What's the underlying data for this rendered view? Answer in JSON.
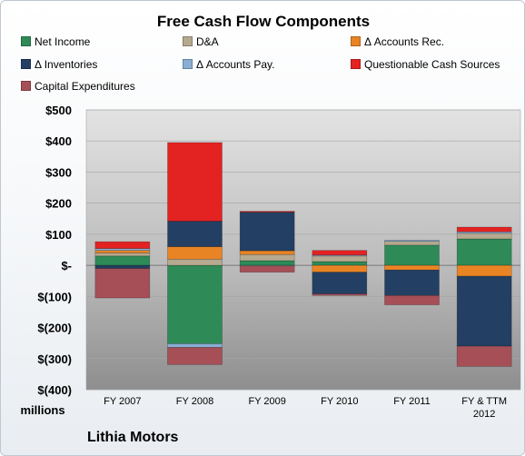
{
  "chart_data": {
    "type": "bar",
    "stacked": true,
    "title": "Free Cash Flow Components",
    "ylabel": "millions",
    "ylim": [
      -400,
      500
    ],
    "yticks": [
      500,
      400,
      300,
      200,
      100,
      0,
      -100,
      -200,
      -300,
      -400
    ],
    "ytick_labels": [
      "$500",
      "$400",
      "$300",
      "$200",
      "$100",
      "$-",
      "$(100)",
      "$(200)",
      "$(300)",
      "$(400)"
    ],
    "categories": [
      "FY 2007",
      "FY 2008",
      "FY 2009",
      "FY 2010",
      "FY 2011",
      "FY & TTM 2012"
    ],
    "grid": true,
    "legend_position": "top",
    "series": [
      {
        "name": "Net Income",
        "color": "#2e8b57",
        "values": [
          30,
          -252,
          15,
          12,
          65,
          85
        ]
      },
      {
        "name": "D&A",
        "color": "#b5a98f",
        "values": [
          10,
          20,
          20,
          18,
          12,
          18
        ]
      },
      {
        "name": "Δ Accounts Rec.",
        "color": "#e98424",
        "values": [
          8,
          40,
          12,
          -22,
          -15,
          -35
        ]
      },
      {
        "name": "Δ Inventories",
        "color": "#233f63",
        "values": [
          -10,
          82,
          124,
          -70,
          -82,
          -225
        ]
      },
      {
        "name": "Δ Accounts Pay.",
        "color": "#8aaed2",
        "values": [
          6,
          -12,
          -2,
          3,
          4,
          5
        ]
      },
      {
        "name": "Questionable Cash Sources",
        "color": "#e32222",
        "values": [
          22,
          253,
          3,
          15,
          0,
          15
        ]
      },
      {
        "name": "Capital Expenditures",
        "color": "#a64f57",
        "values": [
          -95,
          -55,
          -20,
          -5,
          -30,
          -65
        ]
      }
    ]
  },
  "company_label": "Lithia Motors"
}
